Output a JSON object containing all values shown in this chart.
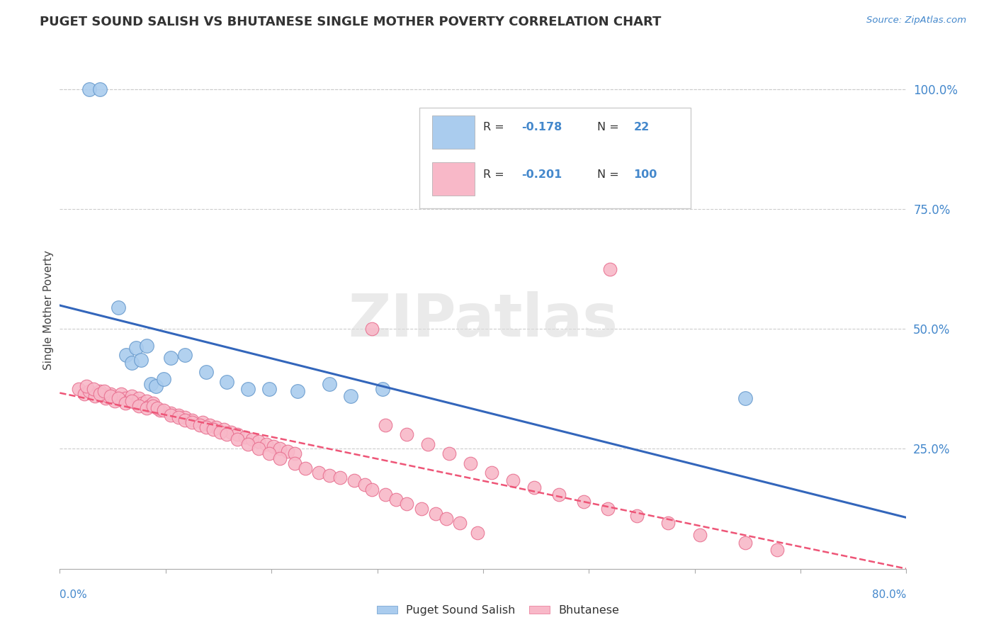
{
  "title": "PUGET SOUND SALISH VS BHUTANESE SINGLE MOTHER POVERTY CORRELATION CHART",
  "source": "Source: ZipAtlas.com",
  "ylabel": "Single Mother Poverty",
  "ylim": [
    0.0,
    1.08
  ],
  "xlim": [
    0.0,
    0.8
  ],
  "ytick_vals": [
    0.25,
    0.5,
    0.75,
    1.0
  ],
  "ytick_labels": [
    "25.0%",
    "50.0%",
    "75.0%",
    "100.0%"
  ],
  "watermark": "ZIPatlas",
  "salish_color": "#aaccee",
  "salish_edge": "#6699cc",
  "bhutanese_color": "#f8b8c8",
  "bhutanese_edge": "#e87090",
  "line_salish_color": "#3366bb",
  "line_bhutanese_color": "#ee5577",
  "legend_r1": "-0.178",
  "legend_n1": "22",
  "legend_r2": "-0.201",
  "legend_n2": "100",
  "salish_x": [
    0.028,
    0.038,
    0.055,
    0.063,
    0.068,
    0.072,
    0.077,
    0.082,
    0.086,
    0.091,
    0.098,
    0.105,
    0.118,
    0.138,
    0.158,
    0.178,
    0.198,
    0.225,
    0.255,
    0.275,
    0.305,
    0.648
  ],
  "salish_y": [
    1.0,
    1.0,
    0.545,
    0.445,
    0.43,
    0.46,
    0.435,
    0.465,
    0.385,
    0.38,
    0.395,
    0.44,
    0.445,
    0.41,
    0.39,
    0.375,
    0.375,
    0.37,
    0.385,
    0.36,
    0.375,
    0.355
  ],
  "bhutanese_x": [
    0.018,
    0.023,
    0.028,
    0.033,
    0.038,
    0.043,
    0.045,
    0.048,
    0.052,
    0.055,
    0.058,
    0.062,
    0.065,
    0.068,
    0.072,
    0.075,
    0.078,
    0.082,
    0.085,
    0.088,
    0.025,
    0.032,
    0.038,
    0.042,
    0.048,
    0.055,
    0.062,
    0.068,
    0.075,
    0.082,
    0.088,
    0.095,
    0.105,
    0.112,
    0.118,
    0.125,
    0.135,
    0.142,
    0.148,
    0.155,
    0.162,
    0.168,
    0.175,
    0.182,
    0.188,
    0.195,
    0.202,
    0.208,
    0.215,
    0.222,
    0.092,
    0.098,
    0.105,
    0.112,
    0.118,
    0.125,
    0.132,
    0.138,
    0.145,
    0.152,
    0.158,
    0.168,
    0.178,
    0.188,
    0.198,
    0.208,
    0.222,
    0.232,
    0.245,
    0.255,
    0.265,
    0.278,
    0.288,
    0.295,
    0.308,
    0.318,
    0.328,
    0.342,
    0.355,
    0.365,
    0.378,
    0.395,
    0.308,
    0.328,
    0.348,
    0.368,
    0.388,
    0.408,
    0.428,
    0.448,
    0.472,
    0.495,
    0.518,
    0.545,
    0.575,
    0.605,
    0.648,
    0.678,
    0.295,
    0.52
  ],
  "bhutanese_y": [
    0.375,
    0.365,
    0.37,
    0.36,
    0.37,
    0.355,
    0.36,
    0.365,
    0.35,
    0.355,
    0.365,
    0.355,
    0.35,
    0.36,
    0.345,
    0.355,
    0.345,
    0.35,
    0.34,
    0.345,
    0.38,
    0.375,
    0.365,
    0.37,
    0.36,
    0.355,
    0.345,
    0.35,
    0.34,
    0.335,
    0.34,
    0.33,
    0.325,
    0.32,
    0.315,
    0.31,
    0.305,
    0.3,
    0.295,
    0.29,
    0.285,
    0.28,
    0.275,
    0.27,
    0.265,
    0.26,
    0.255,
    0.25,
    0.245,
    0.24,
    0.335,
    0.33,
    0.32,
    0.315,
    0.31,
    0.305,
    0.3,
    0.295,
    0.29,
    0.285,
    0.28,
    0.27,
    0.26,
    0.25,
    0.24,
    0.23,
    0.22,
    0.21,
    0.2,
    0.195,
    0.19,
    0.185,
    0.175,
    0.165,
    0.155,
    0.145,
    0.135,
    0.125,
    0.115,
    0.105,
    0.095,
    0.075,
    0.3,
    0.28,
    0.26,
    0.24,
    0.22,
    0.2,
    0.185,
    0.17,
    0.155,
    0.14,
    0.125,
    0.11,
    0.095,
    0.07,
    0.055,
    0.04,
    0.5,
    0.625
  ]
}
